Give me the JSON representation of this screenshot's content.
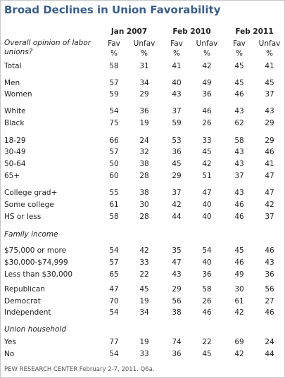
{
  "title": "Broad Declines in Union Favorability",
  "row_header": "Overall opinion of labor unions?",
  "columns": [
    {
      "name": "Jan 2007",
      "subcolumns": [
        "Fav",
        "Unfav"
      ],
      "units": [
        "%",
        "%"
      ]
    },
    {
      "name": "Feb 2010",
      "subcolumns": [
        "Fav",
        "Unfav"
      ],
      "units": [
        "%",
        "%"
      ]
    },
    {
      "name": "Feb 2011",
      "subcolumns": [
        "Fav",
        "Unfav"
      ],
      "units": [
        "%",
        "%"
      ]
    }
  ],
  "sections": [
    {
      "rows": [
        {
          "label": "Total",
          "values": [
            58,
            31,
            41,
            42,
            45,
            41
          ]
        }
      ]
    },
    {
      "rows": [
        {
          "label": "Men",
          "values": [
            57,
            34,
            40,
            49,
            45,
            45
          ]
        },
        {
          "label": "Women",
          "values": [
            59,
            29,
            43,
            36,
            46,
            37
          ]
        }
      ]
    },
    {
      "rows": [
        {
          "label": "White",
          "values": [
            54,
            36,
            37,
            46,
            43,
            43
          ]
        },
        {
          "label": "Black",
          "values": [
            75,
            19,
            59,
            26,
            62,
            29
          ]
        }
      ]
    },
    {
      "rows": [
        {
          "label": "18-29",
          "values": [
            66,
            24,
            53,
            33,
            58,
            29
          ]
        },
        {
          "label": "30-49",
          "values": [
            57,
            32,
            36,
            45,
            43,
            46
          ]
        },
        {
          "label": "50-64",
          "values": [
            50,
            38,
            45,
            42,
            43,
            41
          ]
        },
        {
          "label": "65+",
          "values": [
            60,
            28,
            29,
            51,
            37,
            47
          ]
        }
      ]
    },
    {
      "rows": [
        {
          "label": "College grad+",
          "values": [
            55,
            38,
            37,
            47,
            43,
            47
          ]
        },
        {
          "label": "Some college",
          "values": [
            61,
            30,
            42,
            40,
            46,
            42
          ]
        },
        {
          "label": "HS or less",
          "values": [
            58,
            28,
            44,
            40,
            46,
            37
          ]
        }
      ]
    },
    {
      "header": "Family income",
      "rows": [
        {
          "label": "$75,000 or more",
          "values": [
            54,
            42,
            35,
            54,
            45,
            46
          ]
        },
        {
          "label": "$30,000-$74,999",
          "values": [
            57,
            33,
            47,
            40,
            46,
            43
          ]
        },
        {
          "label": "Less than $30,000",
          "values": [
            65,
            22,
            43,
            36,
            49,
            36
          ]
        }
      ]
    },
    {
      "rows": [
        {
          "label": "Republican",
          "values": [
            47,
            45,
            29,
            58,
            30,
            56
          ]
        },
        {
          "label": "Democrat",
          "values": [
            70,
            19,
            56,
            26,
            61,
            27
          ]
        },
        {
          "label": "Independent",
          "values": [
            54,
            34,
            38,
            46,
            42,
            46
          ]
        }
      ]
    },
    {
      "header": "Union household",
      "rows": [
        {
          "label": "Yes",
          "values": [
            77,
            19,
            74,
            22,
            69,
            24
          ]
        },
        {
          "label": "No",
          "values": [
            54,
            33,
            36,
            45,
            42,
            44
          ]
        }
      ]
    }
  ],
  "footer": "PEW RESEARCH CENTER February 2-7, 2011. Q6a."
}
